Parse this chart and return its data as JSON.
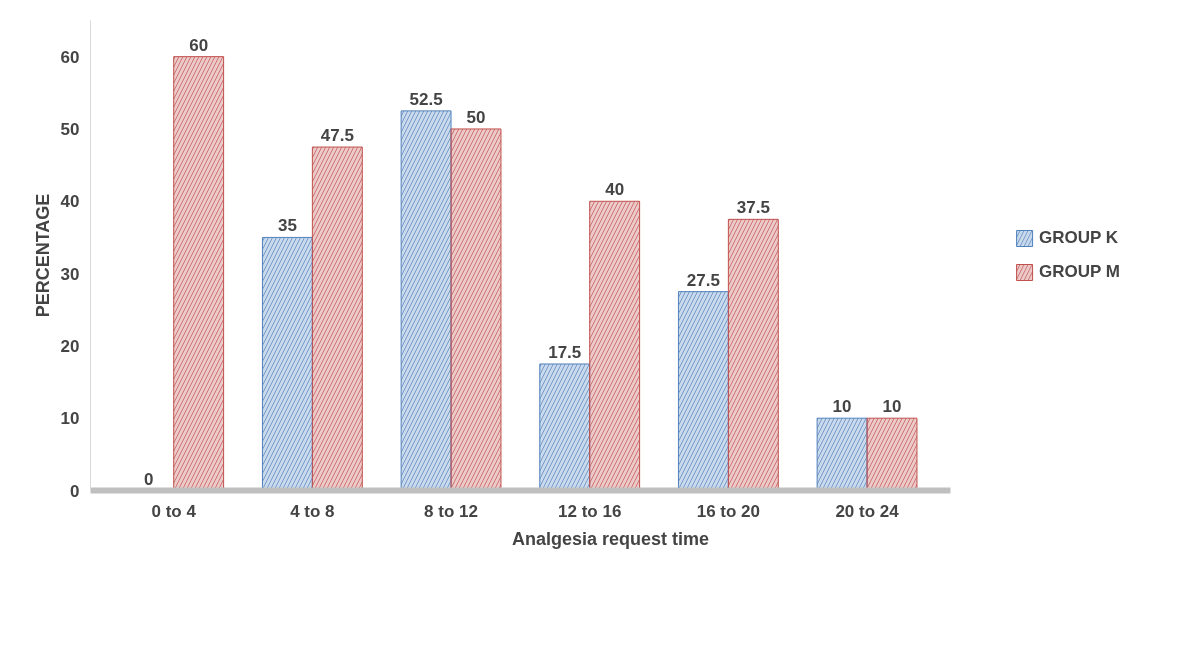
{
  "chart_data": {
    "type": "bar",
    "xlabel": "Analgesia request time",
    "ylabel": "PERCENTAGE",
    "categories": [
      "0 to 4",
      "4 to 8",
      "8 to 12",
      "12 to 16",
      "16 to 20",
      "20 to 24"
    ],
    "series": [
      {
        "name": "GROUP K",
        "color": "#4f81bd",
        "values": [
          0,
          35,
          52.5,
          17.5,
          27.5,
          10
        ]
      },
      {
        "name": "GROUP M",
        "color": "#c0504d",
        "values": [
          60,
          47.5,
          50,
          40,
          37.5,
          10
        ]
      }
    ],
    "ylim": [
      0,
      65
    ],
    "yticks": [
      0,
      10,
      20,
      30,
      40,
      50,
      60
    ],
    "grid": false,
    "legend": "right",
    "data_labels": true
  }
}
